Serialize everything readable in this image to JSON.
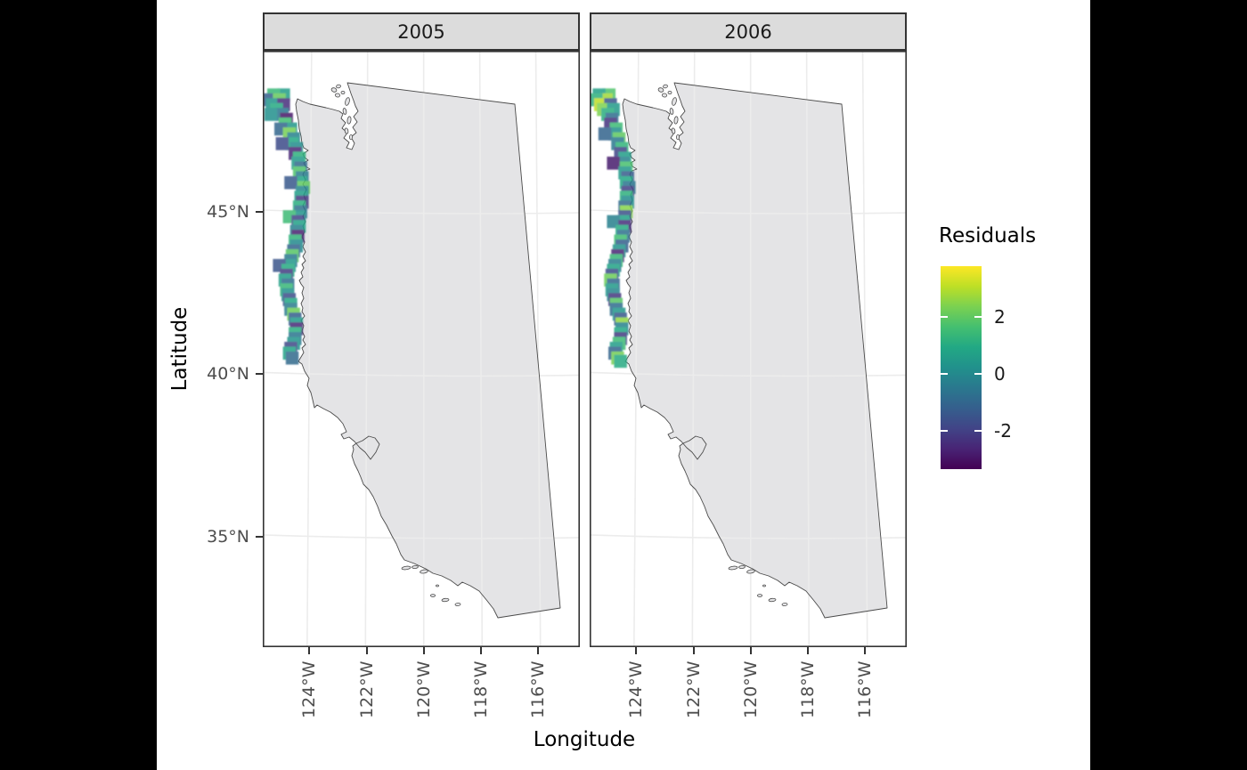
{
  "figure": {
    "background_outside": "#000000",
    "canvas": "#ffffff"
  },
  "colors": {
    "viridis": [
      "#440154",
      "#482475",
      "#414487",
      "#355F8D",
      "#2A788E",
      "#21918C",
      "#22A884",
      "#44BF70",
      "#7AD151",
      "#BDDF26",
      "#FDE725"
    ],
    "map_fill": "#E4E4E6",
    "map_stroke": "#4A4A4A",
    "grid": "#ECECEC",
    "strip_fill": "#DCDCDC",
    "strip_border": "#333333",
    "panel_border": "#333333",
    "axis_text": "#4D4D4D",
    "tile_opacity": 0.85
  },
  "chart_data": {
    "type": "heatmap",
    "title": "",
    "facets": [
      "2005",
      "2006"
    ],
    "xlabel": "Longitude",
    "ylabel": "Latitude",
    "legend_title": "Residuals",
    "x_tick_labels": [
      "124°W",
      "122°W",
      "120°W",
      "118°W",
      "116°W"
    ],
    "x_tick_lons": [
      -124,
      -122,
      -120,
      -118,
      -116
    ],
    "y_tick_labels": [
      "45°N",
      "40°N",
      "35°N"
    ],
    "y_tick_lats": [
      45,
      40,
      35
    ],
    "x_range": [
      -125.63,
      -114.54
    ],
    "y_range": [
      31.6,
      49.96
    ],
    "grid": true,
    "legend_position": "right",
    "color_scale": {
      "name": "viridis",
      "limits": [
        -3.35,
        3.8
      ],
      "ticks": [
        {
          "label": "2",
          "value": 2
        },
        {
          "label": "0",
          "value": 0
        },
        {
          "label": "-2",
          "value": -2
        }
      ]
    },
    "tile_size_deg": {
      "lon": 0.45,
      "lat": 0.4
    },
    "series": [
      {
        "name": "2005",
        "tiles": [
          [
            48.6,
            -124.9,
            0.6
          ],
          [
            48.6,
            -125.25,
            1.4
          ],
          [
            48.45,
            -125.45,
            -1.2
          ],
          [
            48.45,
            -125.05,
            2.1
          ],
          [
            48.3,
            -125.3,
            0.3
          ],
          [
            48.3,
            -124.9,
            -2.4
          ],
          [
            48.15,
            -125.15,
            1.0
          ],
          [
            48.0,
            -124.95,
            -0.6
          ],
          [
            48.0,
            -125.35,
            0.2
          ],
          [
            47.85,
            -124.8,
            -2.9
          ],
          [
            47.7,
            -124.85,
            1.6
          ],
          [
            47.55,
            -124.65,
            0.4
          ],
          [
            47.55,
            -125.0,
            -1.0
          ],
          [
            47.4,
            -124.7,
            2.3
          ],
          [
            47.25,
            -124.55,
            -0.2
          ],
          [
            47.1,
            -124.6,
            0.9
          ],
          [
            47.1,
            -124.95,
            -1.7
          ],
          [
            46.95,
            -124.45,
            0.1
          ],
          [
            46.8,
            -124.5,
            -2.6
          ],
          [
            46.65,
            -124.35,
            1.2
          ],
          [
            46.5,
            -124.4,
            0.5
          ],
          [
            46.35,
            -124.3,
            -0.9
          ],
          [
            46.2,
            -124.35,
            1.8
          ],
          [
            46.05,
            -124.25,
            -0.4
          ],
          [
            45.9,
            -124.3,
            0.8
          ],
          [
            45.9,
            -124.65,
            -1.4
          ],
          [
            45.75,
            -124.2,
            2.0
          ],
          [
            45.6,
            -124.25,
            -0.1
          ],
          [
            45.45,
            -124.3,
            0.6
          ],
          [
            45.3,
            -124.25,
            -2.2
          ],
          [
            45.15,
            -124.35,
            1.1
          ],
          [
            45.0,
            -124.3,
            -0.7
          ],
          [
            44.85,
            -124.35,
            0.3
          ],
          [
            44.85,
            -124.7,
            1.5
          ],
          [
            44.7,
            -124.4,
            -1.9
          ],
          [
            44.55,
            -124.35,
            0.7
          ],
          [
            44.4,
            -124.45,
            -0.3
          ],
          [
            44.25,
            -124.4,
            -2.7
          ],
          [
            44.1,
            -124.5,
            1.3
          ],
          [
            43.95,
            -124.45,
            0.0
          ],
          [
            43.8,
            -124.55,
            -1.1
          ],
          [
            43.65,
            -124.6,
            1.9
          ],
          [
            43.5,
            -124.65,
            -0.5
          ],
          [
            43.35,
            -124.7,
            0.4
          ],
          [
            43.35,
            -125.05,
            -1.5
          ],
          [
            43.2,
            -124.75,
            1.0
          ],
          [
            43.05,
            -124.8,
            -2.1
          ],
          [
            42.9,
            -124.85,
            0.6
          ],
          [
            42.75,
            -124.75,
            -0.8
          ],
          [
            42.6,
            -124.8,
            1.4
          ],
          [
            42.45,
            -124.75,
            0.2
          ],
          [
            42.3,
            -124.7,
            -1.6
          ],
          [
            42.15,
            -124.65,
            0.9
          ],
          [
            42.0,
            -124.65,
            -0.4
          ],
          [
            41.85,
            -124.55,
            2.2
          ],
          [
            41.7,
            -124.5,
            -1.2
          ],
          [
            41.55,
            -124.45,
            0.5
          ],
          [
            41.4,
            -124.45,
            -2.5
          ],
          [
            41.25,
            -124.5,
            1.1
          ],
          [
            41.1,
            -124.5,
            -0.6
          ],
          [
            40.95,
            -124.55,
            0.3
          ],
          [
            40.8,
            -124.65,
            -1.8
          ],
          [
            40.65,
            -124.7,
            0.8
          ],
          [
            40.5,
            -124.6,
            -0.9
          ]
        ]
      },
      {
        "name": "2006",
        "tiles": [
          [
            48.6,
            -124.95,
            1.8
          ],
          [
            48.6,
            -125.3,
            0.7
          ],
          [
            48.45,
            -125.05,
            2.8
          ],
          [
            48.45,
            -125.4,
            1.2
          ],
          [
            48.3,
            -125.25,
            3.1
          ],
          [
            48.3,
            -124.9,
            -1.5
          ],
          [
            48.15,
            -125.15,
            2.4
          ],
          [
            48.15,
            -124.8,
            0.5
          ],
          [
            48.0,
            -125.0,
            1.1
          ],
          [
            47.85,
            -124.85,
            -0.8
          ],
          [
            47.7,
            -124.9,
            -2.3
          ],
          [
            47.55,
            -124.7,
            1.5
          ],
          [
            47.4,
            -124.75,
            0.2
          ],
          [
            47.4,
            -125.1,
            -1.1
          ],
          [
            47.25,
            -124.6,
            2.0
          ],
          [
            47.1,
            -124.65,
            -0.5
          ],
          [
            46.95,
            -124.5,
            1.3
          ],
          [
            46.8,
            -124.55,
            -1.9
          ],
          [
            46.65,
            -124.4,
            0.6
          ],
          [
            46.5,
            -124.45,
            -0.2
          ],
          [
            46.5,
            -124.8,
            -2.8
          ],
          [
            46.35,
            -124.35,
            1.7
          ],
          [
            46.2,
            -124.4,
            0.4
          ],
          [
            46.05,
            -124.3,
            -1.3
          ],
          [
            45.9,
            -124.35,
            0.9
          ],
          [
            45.75,
            -124.25,
            -0.6
          ],
          [
            45.6,
            -124.3,
            -2.0
          ],
          [
            45.45,
            -124.35,
            1.2
          ],
          [
            45.3,
            -124.3,
            0.1
          ],
          [
            45.15,
            -124.4,
            -0.9
          ],
          [
            45.0,
            -124.35,
            2.5
          ],
          [
            44.85,
            -124.4,
            -1.6
          ],
          [
            44.7,
            -124.45,
            0.7
          ],
          [
            44.7,
            -124.8,
            -0.3
          ],
          [
            44.55,
            -124.4,
            -2.4
          ],
          [
            44.4,
            -124.5,
            1.0
          ],
          [
            44.25,
            -124.45,
            -0.7
          ],
          [
            44.1,
            -124.55,
            1.6
          ],
          [
            43.95,
            -124.5,
            -1.2
          ],
          [
            43.8,
            -124.6,
            0.3
          ],
          [
            43.65,
            -124.65,
            -2.6
          ],
          [
            43.5,
            -124.7,
            1.4
          ],
          [
            43.35,
            -124.75,
            -0.4
          ],
          [
            43.2,
            -124.8,
            0.8
          ],
          [
            43.05,
            -124.85,
            -1.7
          ],
          [
            42.9,
            -124.9,
            2.2
          ],
          [
            42.75,
            -124.8,
            -1.0
          ],
          [
            42.6,
            -124.85,
            0.5
          ],
          [
            42.45,
            -124.8,
            -0.1
          ],
          [
            42.3,
            -124.75,
            -2.2
          ],
          [
            42.15,
            -124.7,
            1.9
          ],
          [
            42.0,
            -124.7,
            -0.8
          ],
          [
            41.85,
            -124.6,
            0.4
          ],
          [
            41.7,
            -124.55,
            -1.4
          ],
          [
            41.55,
            -124.5,
            2.6
          ],
          [
            41.4,
            -124.5,
            -0.2
          ],
          [
            41.25,
            -124.55,
            0.9
          ],
          [
            41.1,
            -124.55,
            -2.1
          ],
          [
            40.95,
            -124.6,
            1.5
          ],
          [
            40.8,
            -124.7,
            0.6
          ],
          [
            40.65,
            -124.75,
            -1.1
          ],
          [
            40.5,
            -124.65,
            2.3
          ],
          [
            40.4,
            -124.55,
            1.0
          ]
        ]
      }
    ]
  }
}
